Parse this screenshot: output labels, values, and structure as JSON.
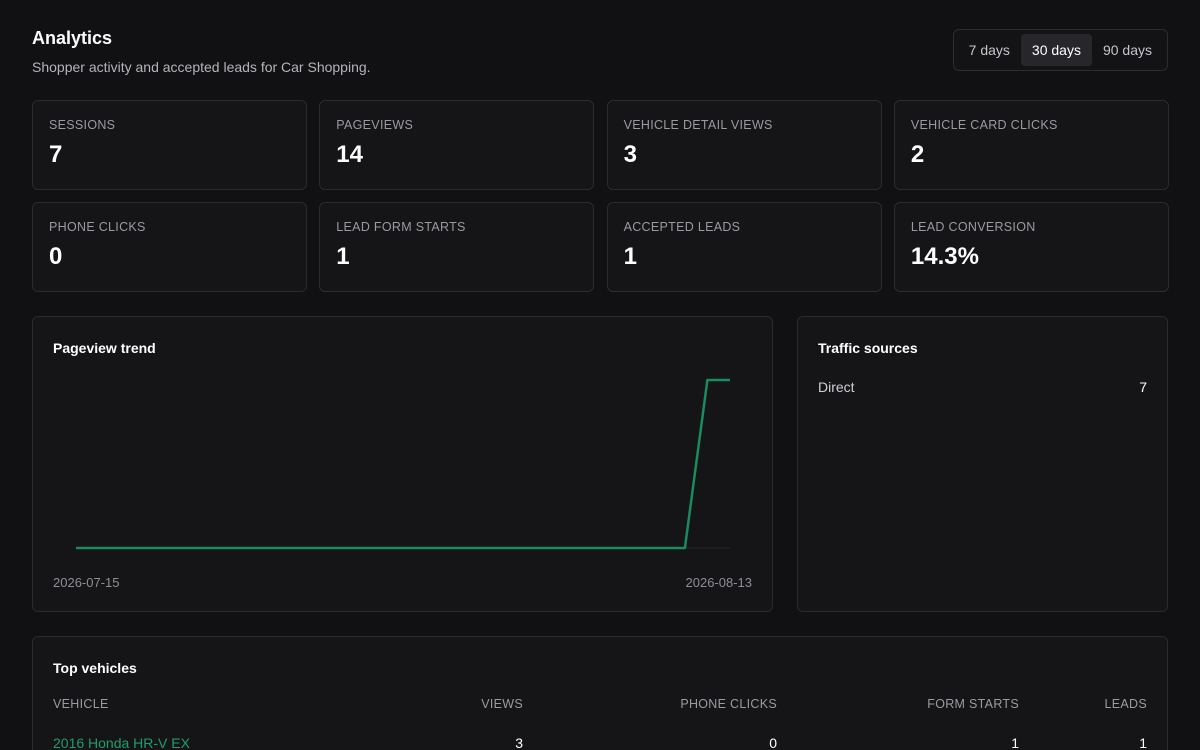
{
  "header": {
    "title": "Analytics",
    "subtitle": "Shopper activity and accepted leads for Car Shopping."
  },
  "range": {
    "options": [
      "7 days",
      "30 days",
      "90 days"
    ],
    "selected": "30 days"
  },
  "metrics": [
    {
      "label": "SESSIONS",
      "value": "7"
    },
    {
      "label": "PAGEVIEWS",
      "value": "14"
    },
    {
      "label": "VEHICLE DETAIL VIEWS",
      "value": "3"
    },
    {
      "label": "VEHICLE CARD CLICKS",
      "value": "2"
    },
    {
      "label": "PHONE CLICKS",
      "value": "0"
    },
    {
      "label": "LEAD FORM STARTS",
      "value": "1"
    },
    {
      "label": "ACCEPTED LEADS",
      "value": "1"
    },
    {
      "label": "LEAD CONVERSION",
      "value": "14.3%"
    }
  ],
  "trend": {
    "title": "Pageview trend",
    "start_label": "2026-07-15",
    "end_label": "2026-08-13",
    "color": "#1a8a5f"
  },
  "chart_data": {
    "type": "line",
    "title": "Pageview trend",
    "x": [
      "2026-07-15",
      "2026-07-16",
      "2026-07-17",
      "2026-07-18",
      "2026-07-19",
      "2026-07-20",
      "2026-07-21",
      "2026-07-22",
      "2026-07-23",
      "2026-07-24",
      "2026-07-25",
      "2026-07-26",
      "2026-07-27",
      "2026-07-28",
      "2026-07-29",
      "2026-07-30",
      "2026-07-31",
      "2026-08-01",
      "2026-08-02",
      "2026-08-03",
      "2026-08-04",
      "2026-08-05",
      "2026-08-06",
      "2026-08-07",
      "2026-08-08",
      "2026-08-09",
      "2026-08-10",
      "2026-08-11",
      "2026-08-12",
      "2026-08-13"
    ],
    "series": [
      {
        "values": [
          0,
          0,
          0,
          0,
          0,
          0,
          0,
          0,
          0,
          0,
          0,
          0,
          0,
          0,
          0,
          0,
          0,
          0,
          0,
          0,
          0,
          0,
          0,
          0,
          0,
          0,
          0,
          0,
          14,
          14
        ]
      }
    ],
    "xlabel": "",
    "ylabel": "",
    "grid": false
  },
  "sources": {
    "title": "Traffic sources",
    "items": [
      {
        "name": "Direct",
        "count": "7"
      }
    ]
  },
  "vehicles": {
    "title": "Top vehicles",
    "columns": [
      "VEHICLE",
      "VIEWS",
      "PHONE CLICKS",
      "FORM STARTS",
      "LEADS"
    ],
    "rows": [
      {
        "vehicle": "2016 Honda HR-V EX",
        "views": "3",
        "phone_clicks": "0",
        "form_starts": "1",
        "leads": "1"
      }
    ],
    "link_color": "#1f9d6a"
  }
}
